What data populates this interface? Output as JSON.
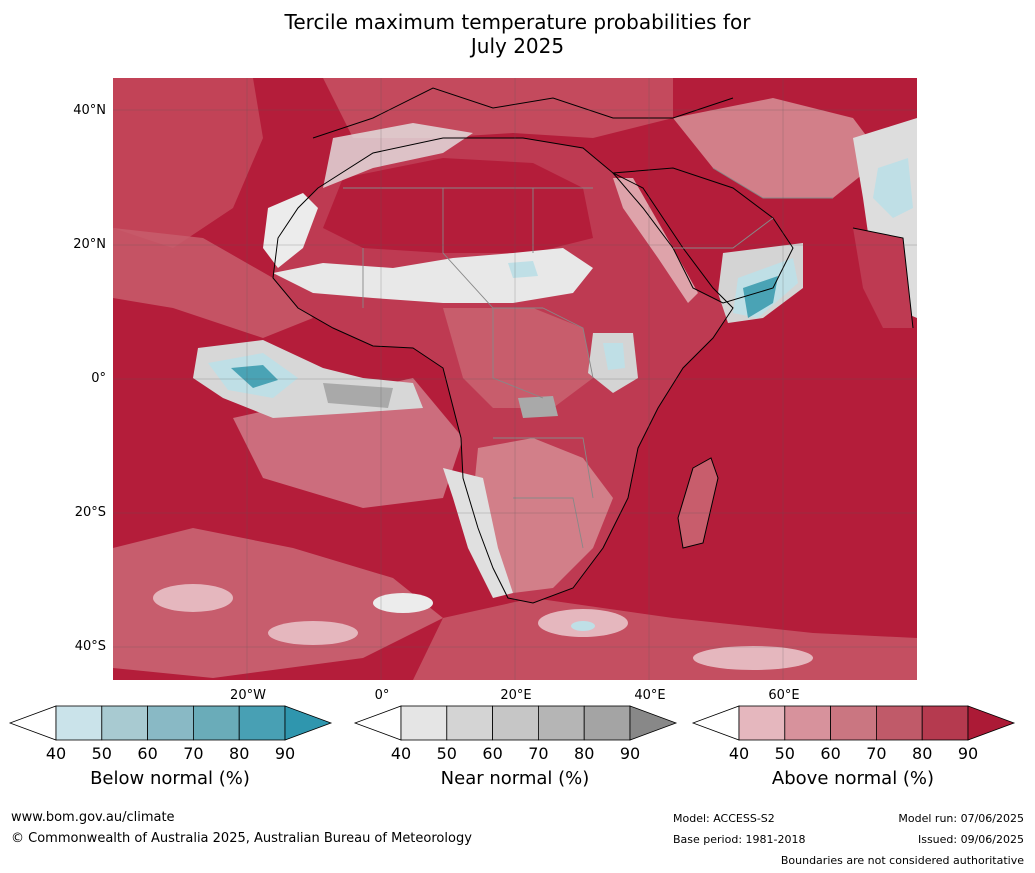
{
  "title": {
    "line1": "Tercile maximum temperature probabilities for",
    "line2": "July 2025"
  },
  "map": {
    "lat_labels": [
      "40°N",
      "20°N",
      "0°",
      "20°S",
      "40°S"
    ],
    "lon_labels": [
      "20°W",
      "0°",
      "20°E",
      "40°E",
      "60°E"
    ]
  },
  "colorbars": [
    {
      "title": "Below normal (%)",
      "ticks": [
        "40",
        "50",
        "60",
        "70",
        "80",
        "90"
      ],
      "colors": [
        "#ffffff",
        "#cae3ea",
        "#a8cad1",
        "#89b9c5",
        "#6aacb9",
        "#48a0b4",
        "#2f96ae"
      ]
    },
    {
      "title": "Near normal (%)",
      "ticks": [
        "40",
        "50",
        "60",
        "70",
        "80",
        "90"
      ],
      "colors": [
        "#ffffff",
        "#e5e5e5",
        "#d4d4d4",
        "#c6c6c6",
        "#b5b5b5",
        "#a4a4a4",
        "#888888"
      ]
    },
    {
      "title": "Above normal (%)",
      "ticks": [
        "40",
        "50",
        "60",
        "70",
        "80",
        "90"
      ],
      "colors": [
        "#ffffff",
        "#e5b7be",
        "#d7929c",
        "#ca7681",
        "#c05a69",
        "#b53a4f",
        "#ac1a36"
      ]
    }
  ],
  "colors": {
    "above_90": "#b41d3a",
    "above_80": "#be3a52",
    "above_70": "#c85d6c",
    "above_60": "#d27f89",
    "above_50": "#dea3aa",
    "near": "#d4d4d4",
    "near_dark": "#a9a9a9",
    "below": "#bfdfe6",
    "below_dark": "#4aa3b5"
  },
  "footer": {
    "url": "www.bom.gov.au/climate",
    "copyright": "© Commonwealth of Australia 2025, Australian Bureau of Meteorology",
    "model": "Model: ACCESS-S2",
    "base_period": "Base period: 1981-2018",
    "model_run": "Model run: 07/06/2025",
    "issued": "Issued: 09/06/2025",
    "disclaimer": "Boundaries are not considered authoritative"
  }
}
